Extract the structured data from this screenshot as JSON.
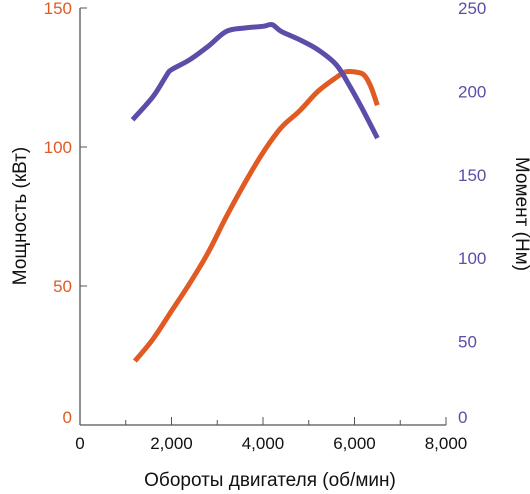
{
  "chart_data": {
    "type": "line",
    "xlabel": "Обороты двигателя (об/мин)",
    "ylabel_left": "Мощность (кВт)",
    "ylabel_right": "Момент (Нм)",
    "xlim": [
      0,
      8000
    ],
    "ylim_left": [
      0,
      150
    ],
    "ylim_right": [
      0,
      250
    ],
    "x_ticks": [
      0,
      2000,
      4000,
      6000,
      8000
    ],
    "x_tick_labels": [
      "0",
      "2,000",
      "4,000",
      "6,000",
      "8,000"
    ],
    "y_left_ticks": [
      0,
      50,
      100,
      150
    ],
    "y_left_tick_labels": [
      "0",
      "50",
      "100",
      "150"
    ],
    "y_right_ticks": [
      0,
      50,
      100,
      150,
      200,
      250
    ],
    "y_right_tick_labels": [
      "0",
      "50",
      "100",
      "150",
      "200",
      "250"
    ],
    "grid": false,
    "series": [
      {
        "axis": "left",
        "color": "#e05a24",
        "x": [
          1200,
          1600,
          2000,
          2400,
          2800,
          3200,
          3600,
          4000,
          4400,
          4800,
          5200,
          5600,
          5800,
          6000,
          6200,
          6350,
          6500
        ],
        "values": [
          23,
          31,
          41,
          51,
          62,
          75,
          87,
          98,
          107,
          113,
          120,
          125,
          127,
          127,
          126,
          122,
          115
        ]
      },
      {
        "axis": "right",
        "color": "#5a4ea8",
        "x": [
          1150,
          1600,
          1900,
          2000,
          2400,
          2800,
          3200,
          3600,
          4000,
          4200,
          4400,
          4800,
          5200,
          5600,
          5900,
          6200,
          6500
        ],
        "values": [
          183,
          197,
          210,
          213,
          219,
          227,
          236,
          238,
          239,
          240,
          236,
          231,
          225,
          216,
          203,
          188,
          172
        ]
      }
    ]
  }
}
